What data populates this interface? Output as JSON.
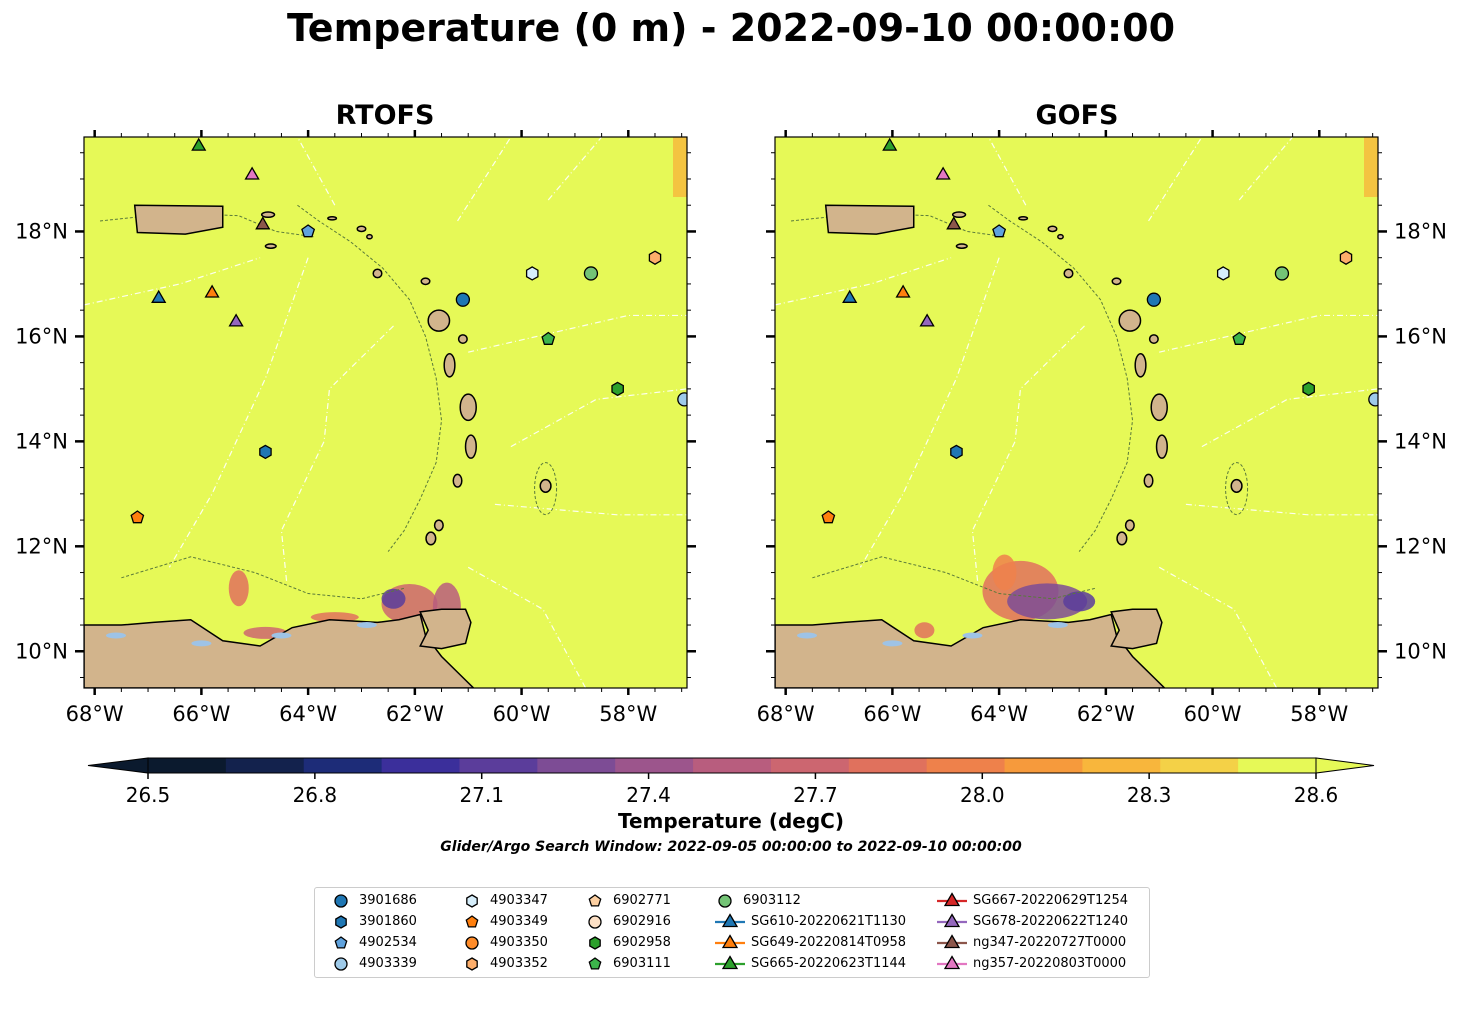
{
  "title": "Temperature (0 m) - 2022-09-10 00:00:00",
  "panels": [
    {
      "title": "RTOFS",
      "name": "rtofs"
    },
    {
      "title": "GOFS",
      "name": "gofs"
    }
  ],
  "axes": {
    "x_ticks": [
      "68°W",
      "66°W",
      "64°W",
      "62°W",
      "60°W",
      "58°W"
    ],
    "x_values": [
      -68,
      -66,
      -64,
      -62,
      -60,
      -58
    ],
    "y_ticks": [
      "10°N",
      "12°N",
      "14°N",
      "16°N",
      "18°N"
    ],
    "y_values": [
      10,
      12,
      14,
      16,
      18
    ],
    "lon_range": [
      -68.2,
      -56.9
    ],
    "lat_range": [
      9.3,
      19.8
    ]
  },
  "colors": {
    "ocean": "#e6f957",
    "land": "#d2b48c",
    "lakes": "#9ec3e6",
    "contour": "#5a7a3a",
    "boundary": "#ffffff"
  },
  "colorbar": {
    "label": "Temperature (degC)",
    "min": 26.4,
    "max": 28.7,
    "ticks": [
      "26.5",
      "26.8",
      "27.1",
      "27.4",
      "27.7",
      "28.0",
      "28.3",
      "28.6"
    ],
    "tick_values": [
      26.5,
      26.8,
      27.1,
      27.4,
      27.7,
      28.0,
      28.3,
      28.6
    ],
    "stops": [
      "#0b1a2e",
      "#13224d",
      "#1d2c78",
      "#3b2f9b",
      "#5b3d9b",
      "#7d4c95",
      "#9c558c",
      "#b85d7e",
      "#cc6670",
      "#e0715d",
      "#ee814b",
      "#f69a3c",
      "#f8b63c",
      "#f4d147",
      "#e6f957"
    ]
  },
  "search_window": "Glider/Argo Search Window: 2022-09-05 00:00:00 to 2022-09-10 00:00:00",
  "chart_data": {
    "type": "scatter",
    "map_type": "filled contour map with platform markers",
    "variable": "Temperature (0 m)",
    "units": "degC",
    "series": [
      {
        "name": "3901686",
        "marker": "circle",
        "color": "#1f77b4",
        "lon": -61.1,
        "lat": 16.7
      },
      {
        "name": "3901860",
        "marker": "hexagon",
        "color": "#1f77b4",
        "lon": -64.8,
        "lat": 13.8
      },
      {
        "name": "4902534",
        "marker": "pentagon",
        "color": "#5fa2dd",
        "lon": -64.0,
        "lat": 18.0
      },
      {
        "name": "4903339",
        "marker": "circle",
        "color": "#9ecae9",
        "lon": -56.95,
        "lat": 14.8
      },
      {
        "name": "4903347",
        "marker": "hexagon",
        "color": "#d6eefb",
        "lon": -59.8,
        "lat": 17.2
      },
      {
        "name": "4903349",
        "marker": "pentagon",
        "color": "#ff7f0e",
        "lon": -67.2,
        "lat": 12.55
      },
      {
        "name": "4903350",
        "marker": "circle",
        "color": "#ff8c2a",
        "lon": null,
        "lat": null
      },
      {
        "name": "4903352",
        "marker": "hexagon",
        "color": "#fdae6b",
        "lon": -57.5,
        "lat": 17.5
      },
      {
        "name": "6902771",
        "marker": "pentagon",
        "color": "#fdd0a2",
        "lon": null,
        "lat": null
      },
      {
        "name": "6902916",
        "marker": "circle",
        "color": "#fde0c5",
        "lon": null,
        "lat": null
      },
      {
        "name": "6902958",
        "marker": "hexagon",
        "color": "#2ca02c",
        "lon": -58.2,
        "lat": 15.0
      },
      {
        "name": "6903111",
        "marker": "pentagon",
        "color": "#3cb44b",
        "lon": -59.5,
        "lat": 15.95
      },
      {
        "name": "6903112",
        "marker": "circle",
        "color": "#74c476",
        "lon": -58.7,
        "lat": 17.2
      },
      {
        "name": "SG610-20220621T1130",
        "marker": "triangle",
        "color": "#1f77b4",
        "lon": -66.8,
        "lat": 16.75
      },
      {
        "name": "SG649-20220814T0958",
        "marker": "triangle",
        "color": "#ff7f0e",
        "lon": -65.8,
        "lat": 16.85
      },
      {
        "name": "SG665-20220623T1144",
        "marker": "triangle",
        "color": "#2ca02c",
        "lon": -66.05,
        "lat": 19.65
      },
      {
        "name": "SG667-20220629T1254",
        "marker": "triangle",
        "color": "#d62728",
        "lon": null,
        "lat": null
      },
      {
        "name": "SG678-20220622T1240",
        "marker": "triangle",
        "color": "#9467bd",
        "lon": -65.35,
        "lat": 16.3
      },
      {
        "name": "ng347-20220727T0000",
        "marker": "triangle",
        "color": "#8c564b",
        "lon": -64.85,
        "lat": 18.15
      },
      {
        "name": "ng357-20220803T0000",
        "marker": "triangle",
        "color": "#e377c2",
        "lon": -65.05,
        "lat": 19.1
      }
    ],
    "xlim": [
      -68.2,
      -56.9
    ],
    "ylim": [
      9.3,
      19.8
    ],
    "grid": false,
    "legend_position": "bottom"
  }
}
